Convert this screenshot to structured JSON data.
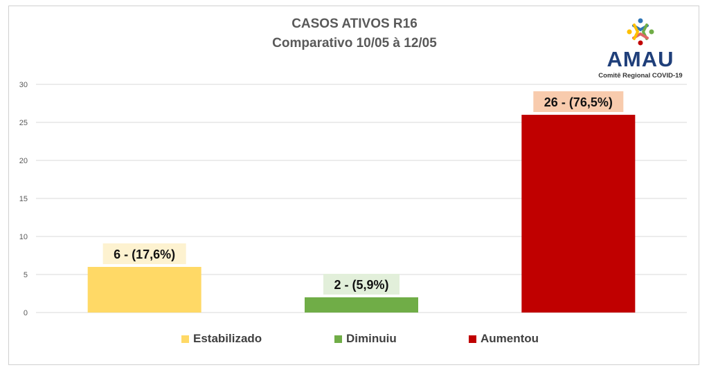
{
  "logo": {
    "name": "AMAU",
    "subtitle": "Comitê Regional COVID-19"
  },
  "chart_data": {
    "type": "bar",
    "title": "CASOS ATIVOS R16",
    "subtitle": "Comparativo 10/05 à 12/05",
    "categories": [
      "Estabilizado",
      "Diminuiu",
      "Aumentou"
    ],
    "values": [
      6,
      2,
      26
    ],
    "data_labels": [
      "6 - (17,6%)",
      "2 - (5,9%)",
      "26 - (76,5%)"
    ],
    "colors": [
      "#FFD966",
      "#70AD47",
      "#C00000"
    ],
    "label_backgrounds": [
      "#FDF2D0",
      "#E2EFDA",
      "#F8CBAD"
    ],
    "ylim": [
      0,
      30
    ],
    "yticks": [
      0,
      5,
      10,
      15,
      20,
      25,
      30
    ],
    "grid": true,
    "legend_position": "bottom",
    "xlabel": "",
    "ylabel": ""
  }
}
